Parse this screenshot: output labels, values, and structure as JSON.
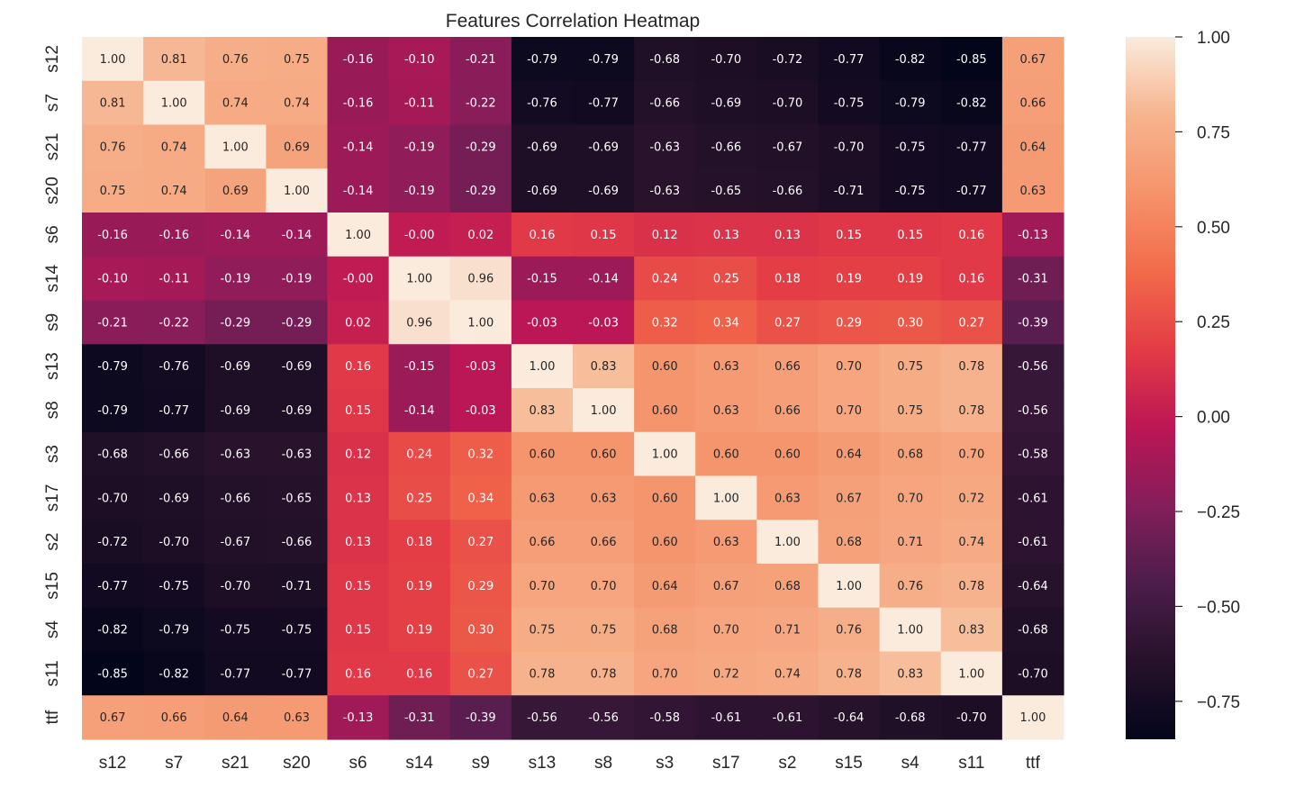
{
  "chart_data": {
    "type": "heatmap",
    "title": "Features Correlation Heatmap",
    "xlabel": "",
    "ylabel": "",
    "labels": [
      "s12",
      "s7",
      "s21",
      "s20",
      "s6",
      "s14",
      "s9",
      "s13",
      "s8",
      "s3",
      "s17",
      "s2",
      "s15",
      "s4",
      "s11",
      "ttf"
    ],
    "matrix": [
      [
        1.0,
        0.81,
        0.76,
        0.75,
        -0.16,
        -0.1,
        -0.21,
        -0.79,
        -0.79,
        -0.68,
        -0.7,
        -0.72,
        -0.77,
        -0.82,
        -0.85,
        0.67
      ],
      [
        0.81,
        1.0,
        0.74,
        0.74,
        -0.16,
        -0.11,
        -0.22,
        -0.76,
        -0.77,
        -0.66,
        -0.69,
        -0.7,
        -0.75,
        -0.79,
        -0.82,
        0.66
      ],
      [
        0.76,
        0.74,
        1.0,
        0.69,
        -0.14,
        -0.19,
        -0.29,
        -0.69,
        -0.69,
        -0.63,
        -0.66,
        -0.67,
        -0.7,
        -0.75,
        -0.77,
        0.64
      ],
      [
        0.75,
        0.74,
        0.69,
        1.0,
        -0.14,
        -0.19,
        -0.29,
        -0.69,
        -0.69,
        -0.63,
        -0.65,
        -0.66,
        -0.71,
        -0.75,
        -0.77,
        0.63
      ],
      [
        -0.16,
        -0.16,
        -0.14,
        -0.14,
        1.0,
        -0.0,
        0.02,
        0.16,
        0.15,
        0.12,
        0.13,
        0.13,
        0.15,
        0.15,
        0.16,
        -0.13
      ],
      [
        -0.1,
        -0.11,
        -0.19,
        -0.19,
        -0.0,
        1.0,
        0.96,
        -0.15,
        -0.14,
        0.24,
        0.25,
        0.18,
        0.19,
        0.19,
        0.16,
        -0.31
      ],
      [
        -0.21,
        -0.22,
        -0.29,
        -0.29,
        0.02,
        0.96,
        1.0,
        -0.03,
        -0.03,
        0.32,
        0.34,
        0.27,
        0.29,
        0.3,
        0.27,
        -0.39
      ],
      [
        -0.79,
        -0.76,
        -0.69,
        -0.69,
        0.16,
        -0.15,
        -0.03,
        1.0,
        0.83,
        0.6,
        0.63,
        0.66,
        0.7,
        0.75,
        0.78,
        -0.56
      ],
      [
        -0.79,
        -0.77,
        -0.69,
        -0.69,
        0.15,
        -0.14,
        -0.03,
        0.83,
        1.0,
        0.6,
        0.63,
        0.66,
        0.7,
        0.75,
        0.78,
        -0.56
      ],
      [
        -0.68,
        -0.66,
        -0.63,
        -0.63,
        0.12,
        0.24,
        0.32,
        0.6,
        0.6,
        1.0,
        0.6,
        0.6,
        0.64,
        0.68,
        0.7,
        -0.58
      ],
      [
        -0.7,
        -0.69,
        -0.66,
        -0.65,
        0.13,
        0.25,
        0.34,
        0.63,
        0.63,
        0.6,
        1.0,
        0.63,
        0.67,
        0.7,
        0.72,
        -0.61
      ],
      [
        -0.72,
        -0.7,
        -0.67,
        -0.66,
        0.13,
        0.18,
        0.27,
        0.66,
        0.66,
        0.6,
        0.63,
        1.0,
        0.68,
        0.71,
        0.74,
        -0.61
      ],
      [
        -0.77,
        -0.75,
        -0.7,
        -0.71,
        0.15,
        0.19,
        0.29,
        0.7,
        0.7,
        0.64,
        0.67,
        0.68,
        1.0,
        0.76,
        0.78,
        -0.64
      ],
      [
        -0.82,
        -0.79,
        -0.75,
        -0.75,
        0.15,
        0.19,
        0.3,
        0.75,
        0.75,
        0.68,
        0.7,
        0.71,
        0.76,
        1.0,
        0.83,
        -0.68
      ],
      [
        -0.85,
        -0.82,
        -0.77,
        -0.77,
        0.16,
        0.16,
        0.27,
        0.78,
        0.78,
        0.7,
        0.72,
        0.74,
        0.78,
        0.83,
        1.0,
        -0.7
      ],
      [
        0.67,
        0.66,
        0.64,
        0.63,
        -0.13,
        -0.31,
        -0.39,
        -0.56,
        -0.56,
        -0.58,
        -0.61,
        -0.61,
        -0.64,
        -0.68,
        -0.7,
        1.0
      ]
    ],
    "colorbar": {
      "range": [
        -0.85,
        1.0
      ],
      "ticks": [
        1.0,
        0.75,
        0.5,
        0.25,
        0.0,
        -0.25,
        -0.5,
        -0.75
      ],
      "tick_labels": [
        "1.00",
        "0.75",
        "0.50",
        "0.25",
        "0.00",
        "−0.25",
        "−0.50",
        "−0.75"
      ]
    },
    "colormap": [
      "#03051a",
      "#26122a",
      "#4c1d4b",
      "#841e5a",
      "#bc1655",
      "#e43c46",
      "#f26b4a",
      "#f5936b",
      "#f6b48e",
      "#faebdd"
    ],
    "grid": false,
    "legend": "none"
  }
}
